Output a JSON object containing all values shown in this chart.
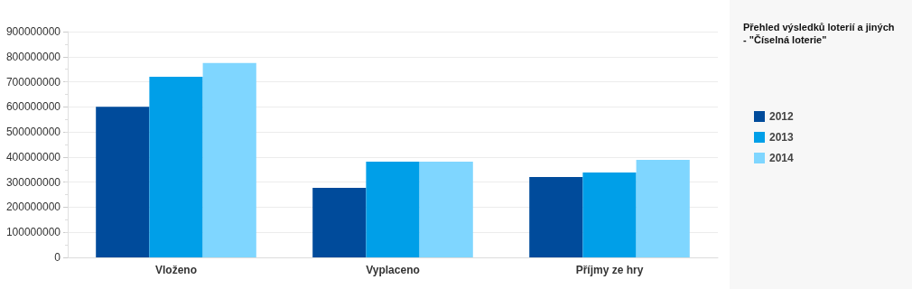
{
  "chart_data": {
    "type": "bar",
    "title": "Přehled výsledků loterií a jiných\n- \"Číselná loterie\"",
    "categories": [
      "Vloženo",
      "Vyplaceno",
      "Příjmy ze hry"
    ],
    "series": [
      {
        "name": "2012",
        "color": "#004b9b",
        "values": [
          600000000,
          277000000,
          320000000
        ]
      },
      {
        "name": "2013",
        "color": "#009fe8",
        "values": [
          720000000,
          382000000,
          338000000
        ]
      },
      {
        "name": "2014",
        "color": "#7fd6ff",
        "values": [
          775000000,
          382000000,
          389000000
        ]
      }
    ],
    "ylim": [
      0,
      900000000
    ],
    "yticks": [
      0,
      100000000,
      200000000,
      300000000,
      400000000,
      500000000,
      600000000,
      700000000,
      800000000,
      900000000
    ],
    "grid": "y",
    "legend": "right"
  }
}
